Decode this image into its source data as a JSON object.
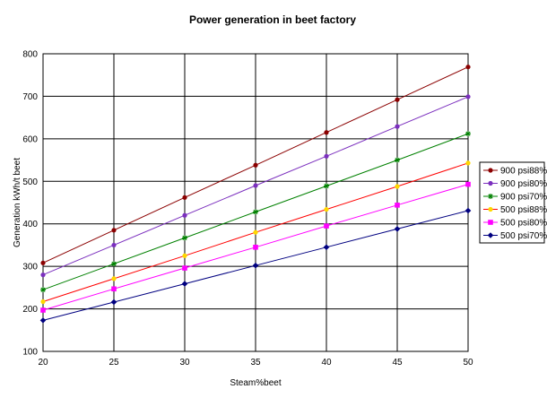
{
  "chart_data": {
    "type": "line",
    "title": "Power generation in beet factory",
    "xlabel": "Steam%beet",
    "ylabel": "Generation kWh/t beet",
    "x": [
      20,
      25,
      30,
      35,
      40,
      45,
      50
    ],
    "xlim": [
      20,
      50
    ],
    "ylim": [
      100,
      800
    ],
    "x_ticks": [
      "20",
      "25",
      "30",
      "35",
      "40",
      "45",
      "50"
    ],
    "y_ticks": [
      "100",
      "200",
      "300",
      "400",
      "500",
      "600",
      "700",
      "800"
    ],
    "grid": true,
    "legend_position": "right",
    "series": [
      {
        "name": "900 psi88%",
        "color": "#8b0000",
        "marker": "circle",
        "values": [
          308,
          385,
          462,
          538,
          615,
          692,
          769
        ]
      },
      {
        "name": "900 psi80%",
        "color": "#7b2fbe",
        "marker": "circle",
        "values": [
          280,
          350,
          420,
          490,
          559,
          629,
          699
        ]
      },
      {
        "name": "900 psi70%",
        "color": "#008000",
        "marker": "star",
        "values": [
          245,
          306,
          367,
          428,
          489,
          550,
          612
        ]
      },
      {
        "name": "500 psi88%",
        "color": "#ff0000",
        "marker_color": "#ffd700",
        "marker": "circle",
        "values": [
          217,
          271,
          325,
          380,
          434,
          488,
          543
        ]
      },
      {
        "name": "500 psi80%",
        "color": "#ff00ff",
        "marker": "square",
        "values": [
          197,
          247,
          296,
          345,
          395,
          444,
          493
        ]
      },
      {
        "name": "500 psi70%",
        "color": "#000080",
        "marker": "diamond",
        "values": [
          173,
          216,
          259,
          302,
          345,
          388,
          431
        ]
      }
    ]
  }
}
